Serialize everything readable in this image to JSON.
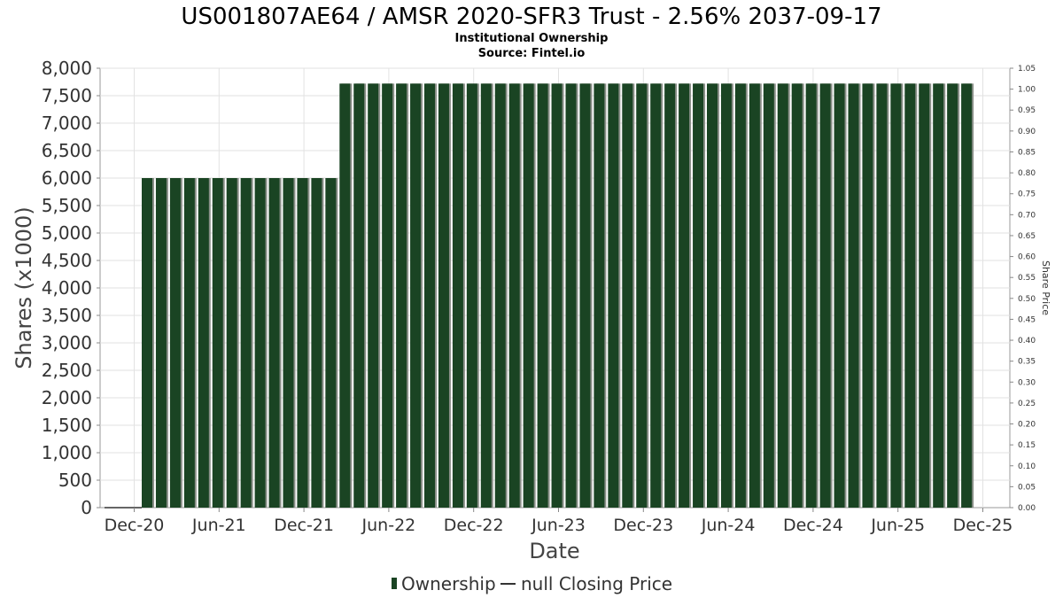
{
  "chart_data": {
    "type": "bar",
    "title": "US001807AE64 / AMSR 2020-SFR3 Trust - 2.56% 2037-09-17",
    "subtitle_lines": [
      "Institutional Ownership",
      "Source: Fintel.io"
    ],
    "xlabel": "Date",
    "ylabel": "Shares (x1000)",
    "y2label": "Share Price",
    "ylim": [
      0,
      8000
    ],
    "y2lim": [
      0,
      1.05
    ],
    "yticks": [
      "0",
      "500",
      "1,000",
      "1,500",
      "2,000",
      "2,500",
      "3,000",
      "3,500",
      "4,000",
      "4,500",
      "5,000",
      "5,500",
      "6,000",
      "6,500",
      "7,000",
      "7,500",
      "8,000"
    ],
    "y2ticks": [
      "0.00",
      "0.05",
      "0.10",
      "0.15",
      "0.20",
      "0.25",
      "0.30",
      "0.35",
      "0.40",
      "0.45",
      "0.50",
      "0.55",
      "0.60",
      "0.65",
      "0.70",
      "0.75",
      "0.80",
      "0.85",
      "0.90",
      "0.95",
      "1.00",
      "1.05"
    ],
    "xticks": [
      "Dec-20",
      "Jun-21",
      "Dec-21",
      "Jun-22",
      "Dec-22",
      "Jun-23",
      "Dec-23",
      "Jun-24",
      "Dec-24",
      "Jun-25",
      "Dec-25"
    ],
    "grid": true,
    "legend_position": "bottom",
    "series": [
      {
        "name": "Ownership",
        "color": "#1a4423",
        "values": [
          6000,
          6000,
          6000,
          6000,
          6000,
          6000,
          6000,
          6000,
          6000,
          6000,
          6000,
          6000,
          6000,
          6000,
          7720,
          7720,
          7720,
          7720,
          7720,
          7720,
          7720,
          7720,
          7720,
          7720,
          7720,
          7720,
          7720,
          7720,
          7720,
          7720,
          7720,
          7720,
          7720,
          7720,
          7720,
          7720,
          7720,
          7720,
          7720,
          7720,
          7720,
          7720,
          7720,
          7720,
          7720,
          7720,
          7720,
          7720,
          7720,
          7720,
          7720,
          7720,
          7720,
          7720,
          7720,
          7720,
          7720,
          7720,
          7720
        ]
      },
      {
        "name": "null Closing Price",
        "color": "#333333",
        "values": []
      }
    ]
  }
}
